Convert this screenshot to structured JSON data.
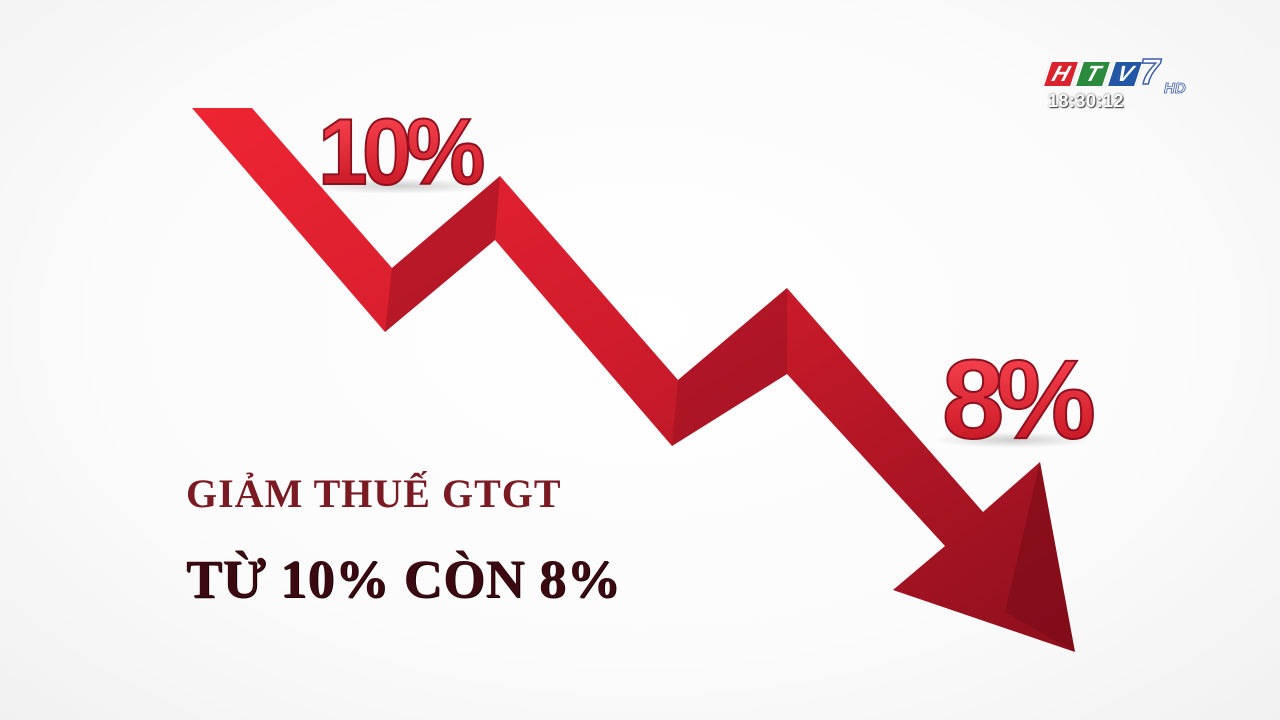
{
  "graphic": {
    "from_rate": "10%",
    "to_rate": "8%",
    "arrow_color": "#c81e2c",
    "arrow_dark_color": "#8a0f1c"
  },
  "caption": {
    "line1": "GIẢM THUẾ GTGT",
    "line2": "TỪ 10% CÒN 8%"
  },
  "broadcast": {
    "channel_letters": [
      "H",
      "T",
      "V"
    ],
    "channel_letter_colors": [
      "#d9232d",
      "#2c8a3c",
      "#2456a6"
    ],
    "channel_number": "7",
    "quality": "HD",
    "clock": "18:30:12"
  }
}
